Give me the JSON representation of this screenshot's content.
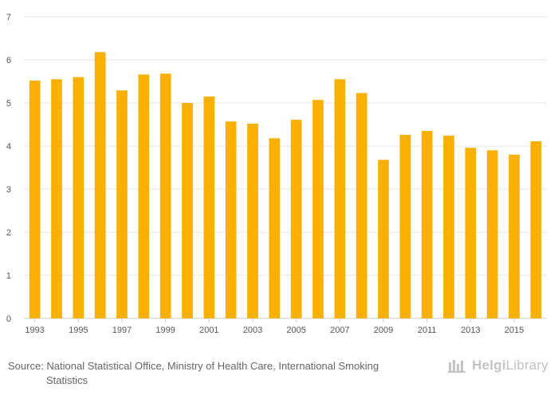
{
  "chart_data": {
    "type": "bar",
    "title": "",
    "xlabel": "",
    "ylabel": "",
    "ylim": [
      0,
      7
    ],
    "y_ticks": [
      0,
      1,
      2,
      3,
      4,
      5,
      6,
      7
    ],
    "grid": "horizontal",
    "bar_color": "#F9B000",
    "categories": [
      "1993",
      "1994",
      "1995",
      "1996",
      "1997",
      "1998",
      "1999",
      "2000",
      "2001",
      "2002",
      "2003",
      "2004",
      "2005",
      "2006",
      "2007",
      "2008",
      "2009",
      "2010",
      "2011",
      "2012",
      "2013",
      "2014",
      "2015",
      "2016"
    ],
    "x_tick_labels": [
      "1993",
      "1995",
      "1997",
      "1999",
      "2001",
      "2003",
      "2005",
      "2007",
      "2009",
      "2011",
      "2013",
      "2015"
    ],
    "values": [
      5.52,
      5.55,
      5.6,
      6.18,
      5.29,
      5.66,
      5.68,
      5.0,
      5.15,
      4.57,
      4.52,
      4.18,
      4.61,
      5.07,
      5.55,
      5.23,
      3.68,
      4.26,
      4.35,
      4.24,
      3.96,
      3.9,
      3.8,
      4.11
    ]
  },
  "footer": {
    "source_line1": "Source: National Statistical Office, Ministry of Health Care, International Smoking",
    "source_line2": "Statistics",
    "logo_bold": "Helgi",
    "logo_rest": "Library"
  },
  "colors": {
    "bar": "#F9B000",
    "grid": "#e6e6e6",
    "axis_text": "#555555",
    "logo": "#c3c3c3"
  }
}
